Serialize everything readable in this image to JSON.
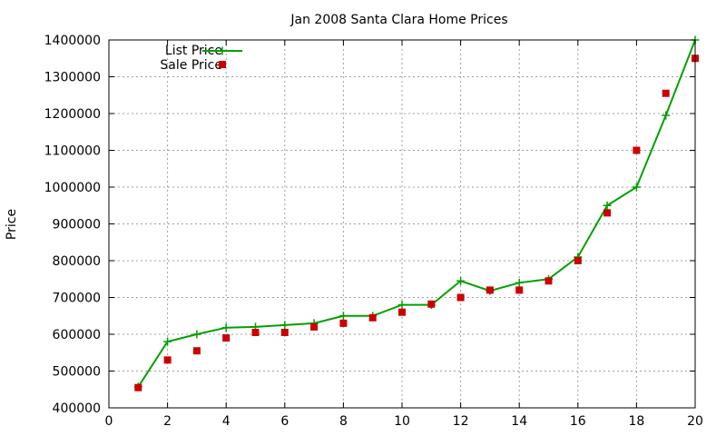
{
  "chart_data": {
    "type": "line",
    "title": "Jan 2008 Santa Clara Home Prices",
    "xlabel": "",
    "ylabel": "Price",
    "xlim": [
      0,
      20
    ],
    "ylim": [
      400000,
      1400000
    ],
    "x_ticks": [
      0,
      2,
      4,
      6,
      8,
      10,
      12,
      14,
      16,
      18,
      20
    ],
    "y_ticks": [
      400000,
      500000,
      600000,
      700000,
      800000,
      900000,
      1000000,
      1100000,
      1200000,
      1300000,
      1400000
    ],
    "grid": true,
    "legend": "top-left",
    "x": [
      1,
      2,
      3,
      4,
      5,
      6,
      7,
      8,
      9,
      10,
      11,
      12,
      13,
      14,
      15,
      16,
      17,
      18,
      19,
      20
    ],
    "series": [
      {
        "name": "List Price",
        "style": "line-with-plus-markers",
        "color": "#00a000",
        "values": [
          457000,
          580000,
          600000,
          618000,
          620000,
          625000,
          630000,
          650000,
          650000,
          680000,
          680000,
          745000,
          718000,
          740000,
          750000,
          810000,
          950000,
          1000000,
          1195000,
          1400000
        ]
      },
      {
        "name": "Sale Price",
        "style": "square-points",
        "color": "#cc0000",
        "values": [
          455000,
          530000,
          555000,
          590000,
          605000,
          605000,
          620000,
          630000,
          645000,
          660000,
          682000,
          700000,
          720000,
          720000,
          745000,
          800000,
          930000,
          1100000,
          1255000,
          1350000
        ]
      }
    ]
  }
}
